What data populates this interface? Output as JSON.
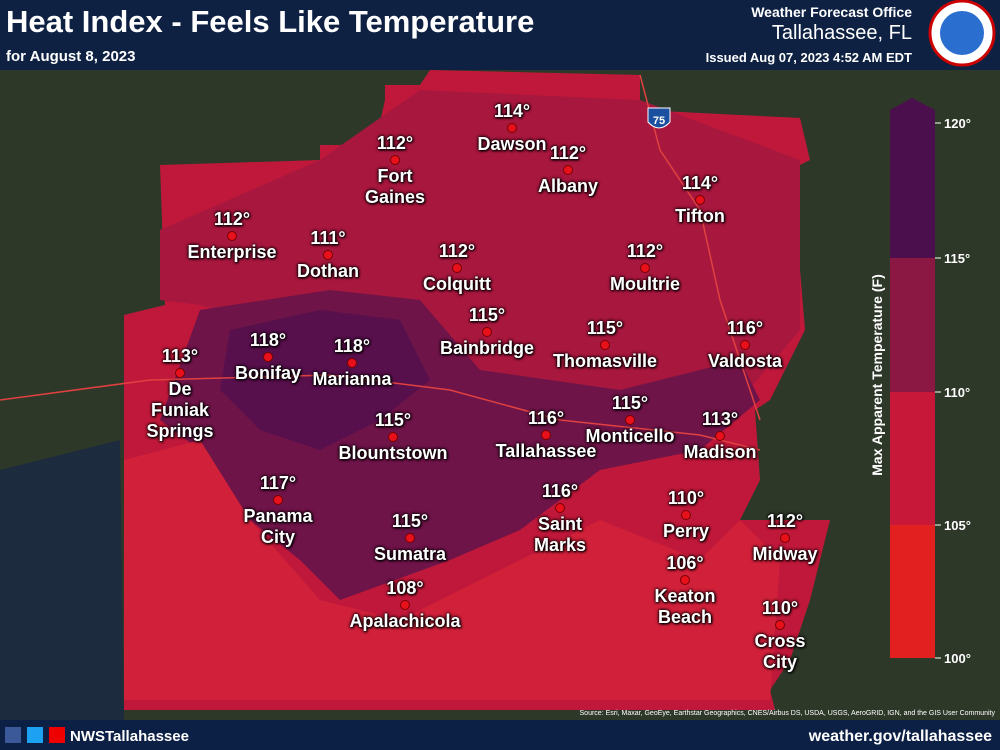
{
  "header": {
    "title": "Heat Index - Feels Like Temperature",
    "subtitle": "for August 8, 2023",
    "office": "Weather Forecast Office",
    "location": "Tallahassee, FL",
    "issued": "Issued Aug 07, 2023 4:52 AM EDT"
  },
  "legend": {
    "title": "Max Apparent Temperature (F)",
    "ticks": [
      "120°",
      "115°",
      "110°",
      "105°",
      "100°"
    ]
  },
  "interstate": "75",
  "cities": [
    {
      "name": "Dawson",
      "temp": "114°"
    },
    {
      "name": "Fort Gaines",
      "temp": "112°"
    },
    {
      "name": "Albany",
      "temp": "112°"
    },
    {
      "name": "Tifton",
      "temp": "114°"
    },
    {
      "name": "Enterprise",
      "temp": "112°"
    },
    {
      "name": "Dothan",
      "temp": "111°"
    },
    {
      "name": "Colquitt",
      "temp": "112°"
    },
    {
      "name": "Moultrie",
      "temp": "112°"
    },
    {
      "name": "Bainbridge",
      "temp": "115°"
    },
    {
      "name": "Thomasville",
      "temp": "115°"
    },
    {
      "name": "Valdosta",
      "temp": "116°"
    },
    {
      "name": "De Funiak Springs",
      "temp": "113°"
    },
    {
      "name": "Bonifay",
      "temp": "118°"
    },
    {
      "name": "Marianna",
      "temp": "118°"
    },
    {
      "name": "Blountstown",
      "temp": "115°"
    },
    {
      "name": "Tallahassee",
      "temp": "116°"
    },
    {
      "name": "Monticello",
      "temp": "115°"
    },
    {
      "name": "Madison",
      "temp": "113°"
    },
    {
      "name": "Panama City",
      "temp": "117°"
    },
    {
      "name": "Saint Marks",
      "temp": "116°"
    },
    {
      "name": "Perry",
      "temp": "110°"
    },
    {
      "name": "Midway",
      "temp": "112°"
    },
    {
      "name": "Sumatra",
      "temp": "115°"
    },
    {
      "name": "Keaton Beach",
      "temp": "106°"
    },
    {
      "name": "Apalachicola",
      "temp": "108°"
    },
    {
      "name": "Cross City",
      "temp": "110°"
    }
  ],
  "footer": {
    "source": "Source: Esri, Maxar, GeoEye, Earthstar Geographics, CNES/Airbus DS, USDA, USGS, AeroGRID, IGN, and the GIS User Community",
    "social": "NWSTallahassee",
    "url": "weather.gov/tallahassee"
  }
}
